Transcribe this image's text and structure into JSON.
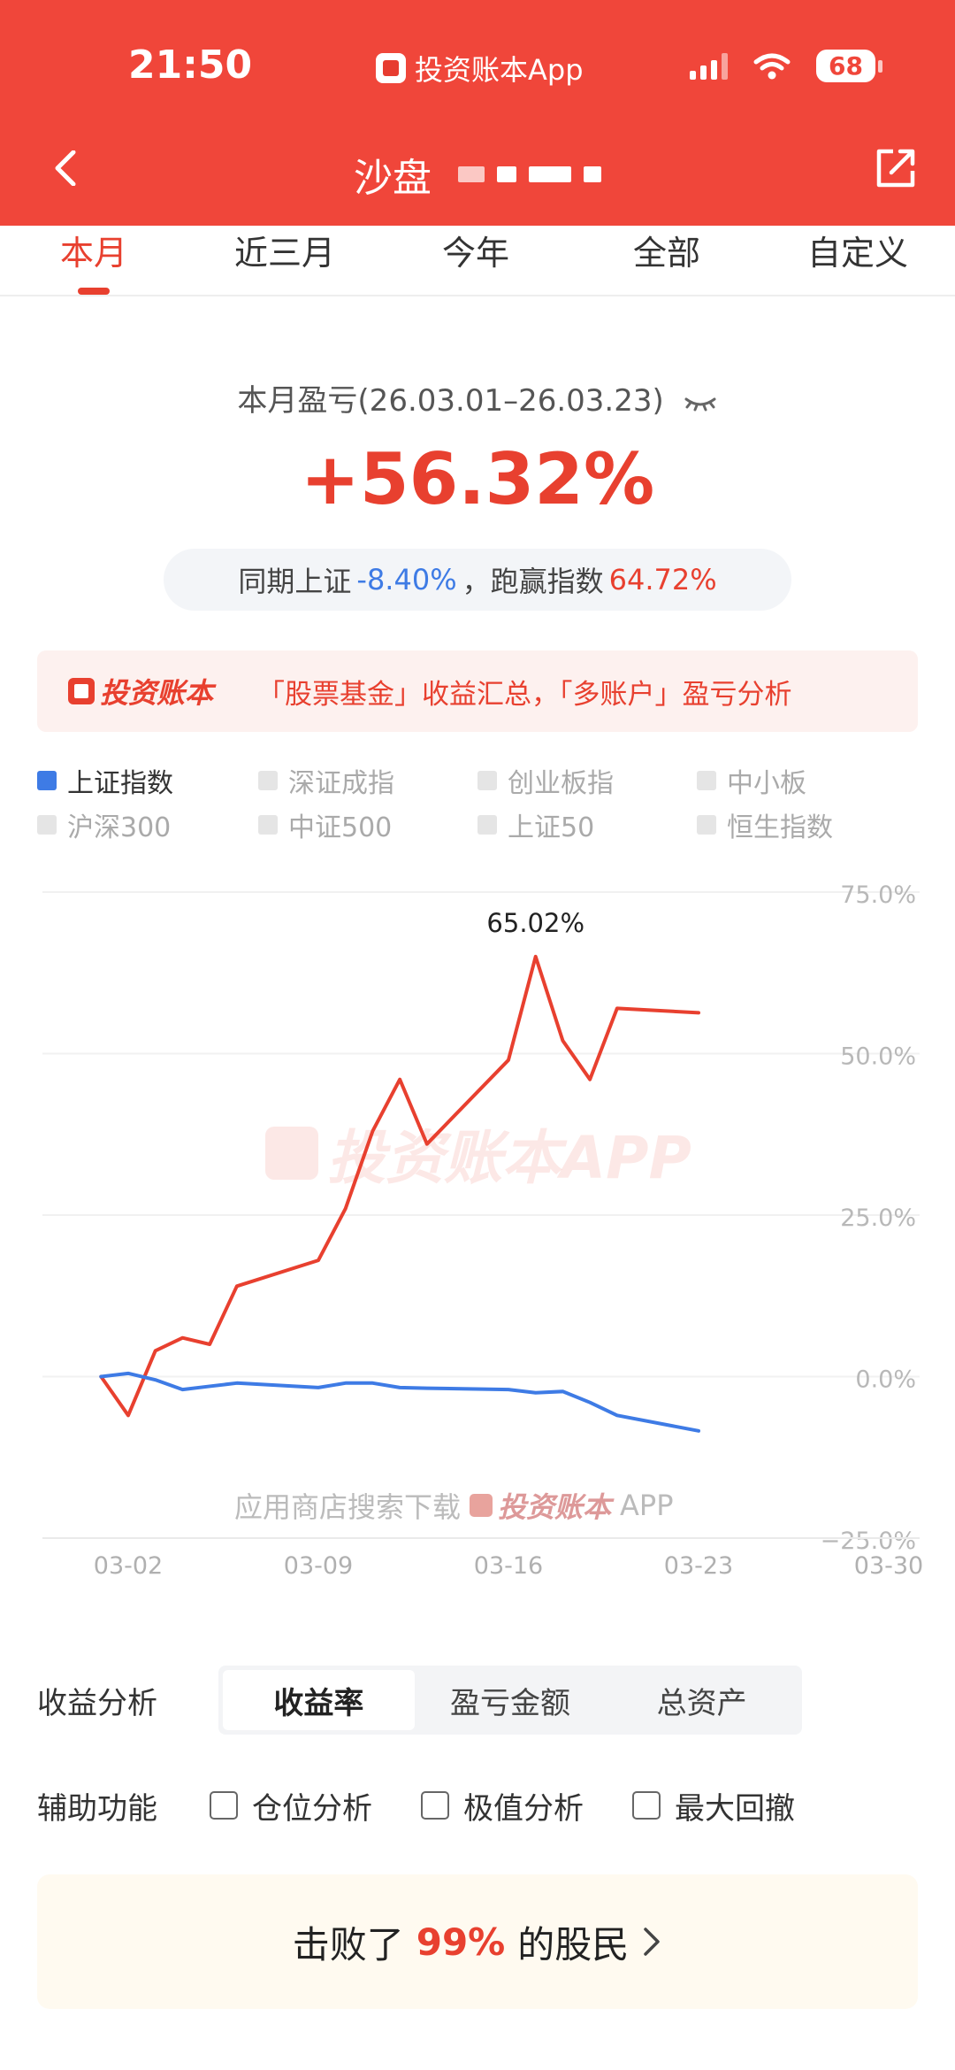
{
  "status_bar": {
    "time": "21:50",
    "app_name": "投资账本App",
    "battery": "68"
  },
  "nav": {
    "title": "沙盘"
  },
  "tabs": [
    {
      "label": "本月",
      "active": true
    },
    {
      "label": "近三月",
      "active": false
    },
    {
      "label": "今年",
      "active": false
    },
    {
      "label": "全部",
      "active": false
    },
    {
      "label": "自定义",
      "active": false
    }
  ],
  "summary": {
    "label": "本月盈亏(26.03.01–26.03.23)",
    "return_pct": "+56.32%",
    "compare_prefix": "同期上证",
    "index_return": "-8.40%",
    "compare_sep": "，跑赢指数",
    "beat_value": "64.72%"
  },
  "promo": {
    "brand": "投资账本",
    "text": "「股票基金」收益汇总，「多账户」盈亏分析"
  },
  "legend": [
    {
      "label": "上证指数",
      "active": true
    },
    {
      "label": "深证成指",
      "active": false
    },
    {
      "label": "创业板指",
      "active": false
    },
    {
      "label": "中小板",
      "active": false
    },
    {
      "label": "沪深300",
      "active": false
    },
    {
      "label": "中证500",
      "active": false
    },
    {
      "label": "上证50",
      "active": false
    },
    {
      "label": "恒生指数",
      "active": false
    }
  ],
  "colors": {
    "brand_red": "#e8402f",
    "index_blue": "#3e7be5",
    "header_red": "#f0463a"
  },
  "chart_data": {
    "type": "line",
    "x": [
      "03-02",
      "03-03",
      "03-04",
      "03-05",
      "03-06",
      "03-09",
      "03-10",
      "03-11",
      "03-12",
      "03-13",
      "03-16",
      "03-17",
      "03-18",
      "03-19",
      "03-20",
      "03-23"
    ],
    "x_ticks": [
      "03-02",
      "03-09",
      "03-16",
      "03-23",
      "03-30"
    ],
    "y_ticks": [
      "75.0%",
      "50.0%",
      "25.0%",
      "0.0%",
      "−25.0%"
    ],
    "ylim": [
      -25,
      75
    ],
    "start": {
      "x": "03-01",
      "portfolio": 0,
      "index": 0
    },
    "series": [
      {
        "name": "portfolio",
        "color": "#e8402f",
        "values": [
          -6,
          4,
          6,
          5,
          14,
          18,
          26,
          38,
          46,
          36,
          49,
          65.02,
          52,
          46,
          57,
          56.32
        ]
      },
      {
        "name": "上证指数",
        "color": "#3e7be5",
        "values": [
          0.5,
          -0.5,
          -2,
          -1.5,
          -1,
          -1.7,
          -1,
          -1,
          -1.7,
          -1.8,
          -2.0,
          -2.5,
          -2.3,
          -4,
          -6,
          -8.4
        ]
      }
    ],
    "peak_label": "65.02%",
    "watermark": "投资账本APP",
    "footer_prefix": "应用商店搜索下载",
    "footer_brand": "投资账本",
    "footer_suffix": "APP"
  },
  "analysis": {
    "label": "收益分析",
    "options": [
      {
        "label": "收益率",
        "active": true
      },
      {
        "label": "盈亏金额",
        "active": false
      },
      {
        "label": "总资产",
        "active": false
      }
    ]
  },
  "aux": {
    "label": "辅助功能",
    "options": [
      {
        "label": "仓位分析"
      },
      {
        "label": "极值分析"
      },
      {
        "label": "最大回撤"
      }
    ]
  },
  "beat": {
    "prefix": "击败了",
    "pct": "99%",
    "suffix": "的股民"
  }
}
